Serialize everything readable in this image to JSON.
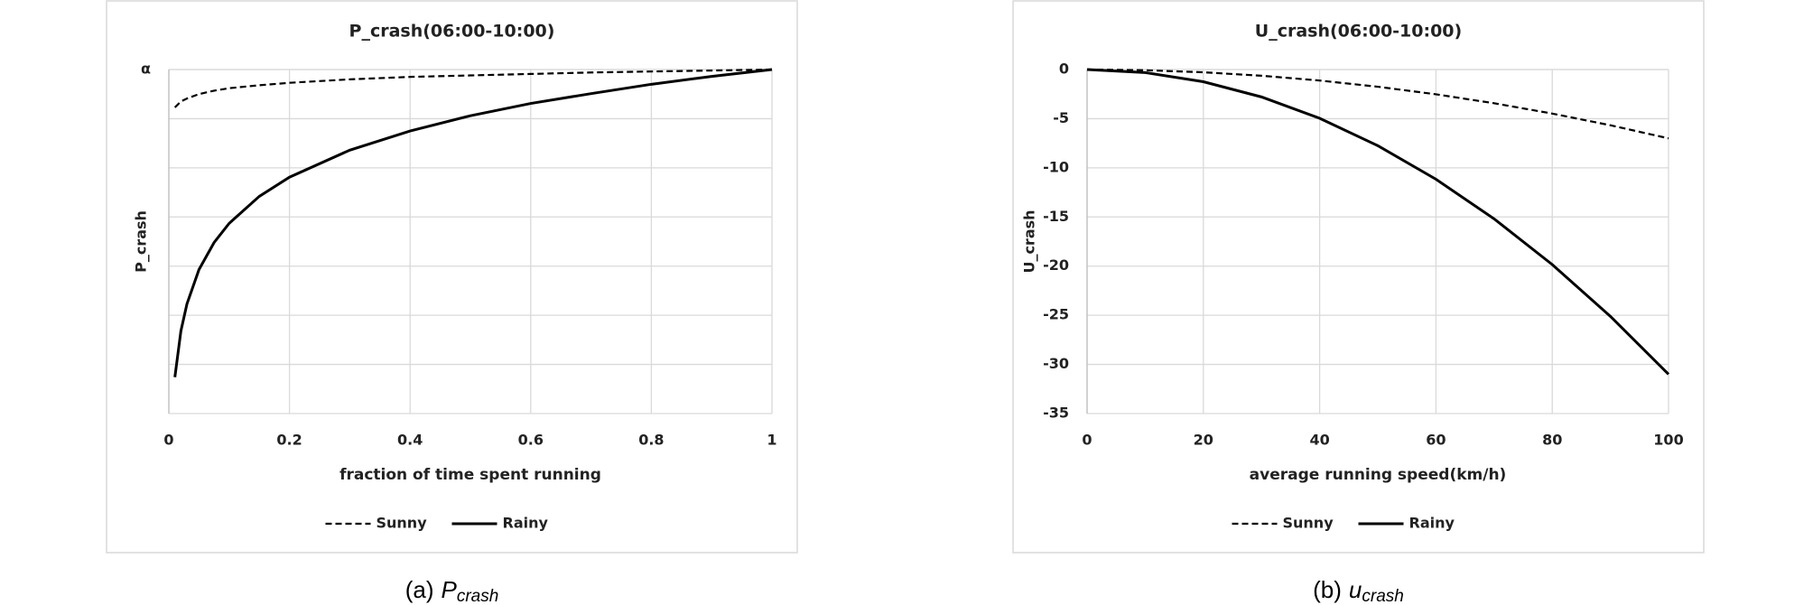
{
  "chart_data": [
    {
      "type": "line",
      "title": "P_crash(06:00-10:00)",
      "x_label": "fraction of time spent running",
      "y_label": "P_crash",
      "x": [
        0.01,
        0.02,
        0.03,
        0.05,
        0.075,
        0.1,
        0.15,
        0.2,
        0.3,
        0.4,
        0.5,
        0.6,
        0.7,
        0.8,
        0.9,
        1.0
      ],
      "series": [
        {
          "name": "Sunny",
          "color": "#000000",
          "line_style": "dashed",
          "values": [
            -0.77,
            -0.65,
            -0.59,
            -0.5,
            -0.43,
            -0.38,
            -0.32,
            -0.27,
            -0.2,
            -0.15,
            -0.12,
            -0.09,
            -0.06,
            -0.04,
            -0.02,
            0
          ]
        },
        {
          "name": "Rainy",
          "color": "#000000",
          "line_style": "solid",
          "values": [
            -6.26,
            -5.32,
            -4.77,
            -4.07,
            -3.52,
            -3.13,
            -2.58,
            -2.19,
            -1.64,
            -1.25,
            -0.94,
            -0.69,
            -0.49,
            -0.3,
            -0.14,
            0
          ]
        }
      ],
      "xlim": [
        0,
        1
      ],
      "xticks": [
        0,
        0.2,
        0.4,
        0.6,
        0.8,
        1
      ],
      "ylim": [
        -7,
        0
      ],
      "yticks": [
        {
          "value": -7,
          "label": null
        },
        {
          "value": -6,
          "label": null
        },
        {
          "value": -5,
          "label": null
        },
        {
          "value": -4,
          "label": null
        },
        {
          "value": -3,
          "label": null
        },
        {
          "value": -2,
          "label": null
        },
        {
          "value": -1,
          "label": null
        },
        {
          "value": 0,
          "label": "α"
        }
      ],
      "grid": true,
      "legend": "bottom",
      "caption": {
        "prefix": "(a)",
        "symbol": "P",
        "subscript": "crash"
      }
    },
    {
      "type": "line",
      "title": "U_crash(06:00-10:00)",
      "x_label": "average running speed(km/h)",
      "y_label": "U_crash",
      "x": [
        0,
        10,
        20,
        30,
        40,
        50,
        60,
        70,
        80,
        90,
        100
      ],
      "series": [
        {
          "name": "Sunny",
          "color": "#000000",
          "line_style": "dashed",
          "values": [
            0,
            -0.07,
            -0.28,
            -0.63,
            -1.12,
            -1.75,
            -2.52,
            -3.43,
            -4.48,
            -5.67,
            -7
          ]
        },
        {
          "name": "Rainy",
          "color": "#000000",
          "line_style": "solid",
          "values": [
            0,
            -0.31,
            -1.24,
            -2.79,
            -4.96,
            -7.75,
            -11.16,
            -15.19,
            -19.84,
            -25.11,
            -31
          ]
        }
      ],
      "xlim": [
        0,
        100
      ],
      "xticks": [
        0,
        20,
        40,
        60,
        80,
        100
      ],
      "ylim": [
        -35,
        0
      ],
      "yticks": [
        0,
        -5,
        -10,
        -15,
        -20,
        -25,
        -30,
        -35
      ],
      "grid": true,
      "legend": "bottom",
      "caption": {
        "prefix": "(b)",
        "symbol": "u",
        "subscript": "crash"
      }
    }
  ]
}
